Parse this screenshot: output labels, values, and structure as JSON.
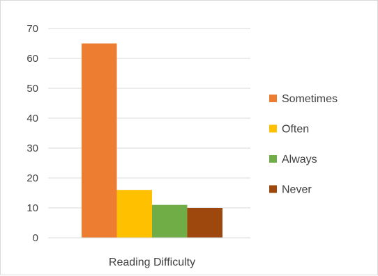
{
  "chart_data": {
    "type": "bar",
    "title": "",
    "xlabel": "",
    "ylabel": "",
    "categories": [
      "Reading Difficulty"
    ],
    "series": [
      {
        "name": "Sometimes",
        "values": [
          65
        ],
        "color": "#ED7D31"
      },
      {
        "name": "Often",
        "values": [
          16
        ],
        "color": "#FFC000"
      },
      {
        "name": "Always",
        "values": [
          11
        ],
        "color": "#70AD47"
      },
      {
        "name": "Never",
        "values": [
          10
        ],
        "color": "#9E480E"
      }
    ],
    "ylim": [
      0,
      70
    ],
    "yticks": [
      "0",
      "10",
      "20",
      "30",
      "40",
      "50",
      "60",
      "70"
    ],
    "grid": true,
    "legend_position": "right"
  }
}
